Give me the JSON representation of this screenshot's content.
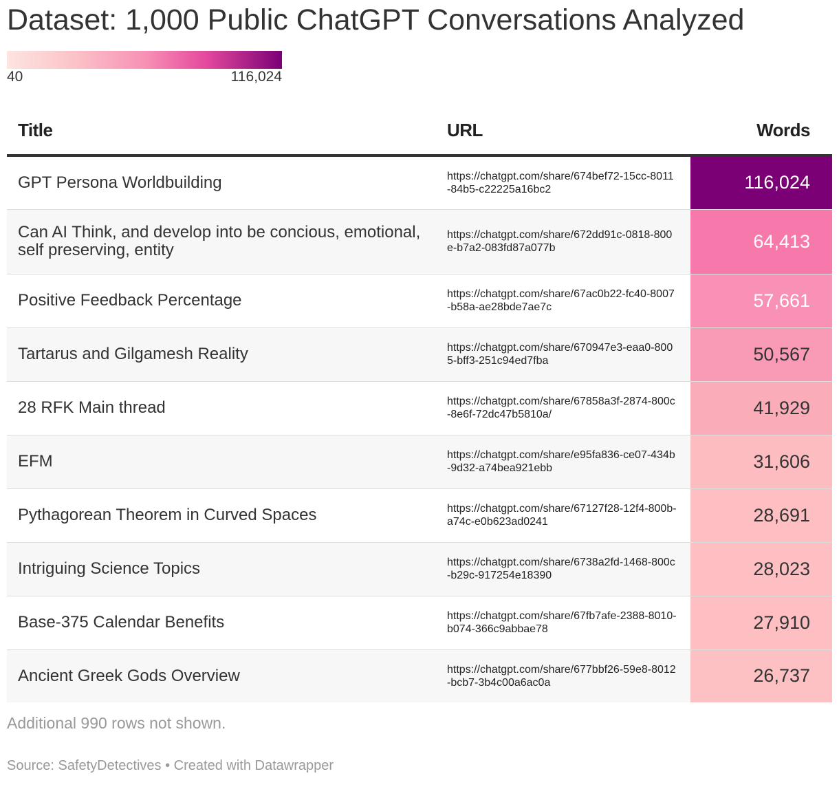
{
  "title": "Dataset: 1,000 Public ChatGPT Conversations Analyzed",
  "legend": {
    "min_label": "40",
    "max_label": "116,024",
    "min": 40,
    "max": 116024,
    "colors": [
      "#fde5e1",
      "#fbc2c7",
      "#f891b5",
      "#e54a9e",
      "#7b0076"
    ]
  },
  "chart_data": {
    "type": "table",
    "columns": [
      "Title",
      "URL",
      "Words"
    ],
    "rows": [
      {
        "title": "GPT Persona Worldbuilding",
        "url": "https://chatgpt.com/share/674bef72-15cc-8011-84b5-c22225a16bc2",
        "words": 116024,
        "words_label": "116,024"
      },
      {
        "title": "Can AI Think, and develop into be concious, emotional, self preserving, entity",
        "url": "https://chatgpt.com/share/672dd91c-0818-800e-b7a2-083fd87a077b",
        "words": 64413,
        "words_label": "64,413"
      },
      {
        "title": "Positive Feedback Percentage",
        "url": "https://chatgpt.com/share/67ac0b22-fc40-8007-b58a-ae28bde7ae7c",
        "words": 57661,
        "words_label": "57,661"
      },
      {
        "title": "Tartarus and Gilgamesh Reality",
        "url": "https://chatgpt.com/share/670947e3-eaa0-8005-bff3-251c94ed7fba",
        "words": 50567,
        "words_label": "50,567"
      },
      {
        "title": "28 RFK Main thread",
        "url": "https://chatgpt.com/share/67858a3f-2874-800c-8e6f-72dc47b5810a/",
        "words": 41929,
        "words_label": "41,929"
      },
      {
        "title": "EFM",
        "url": "https://chatgpt.com/share/e95fa836-ce07-434b-9d32-a74bea921ebb",
        "words": 31606,
        "words_label": "31,606"
      },
      {
        "title": "Pythagorean Theorem in Curved Spaces",
        "url": "https://chatgpt.com/share/67127f28-12f4-800b-a74c-e0b623ad0241",
        "words": 28691,
        "words_label": "28,691"
      },
      {
        "title": "Intriguing Science Topics",
        "url": "https://chatgpt.com/share/6738a2fd-1468-800c-b29c-917254e18390",
        "words": 28023,
        "words_label": "28,023"
      },
      {
        "title": "Base-375 Calendar Benefits",
        "url": "https://chatgpt.com/share/67fb7afe-2388-8010-b074-366c9abbae78",
        "words": 27910,
        "words_label": "27,910"
      },
      {
        "title": "Ancient Greek Gods Overview",
        "url": "https://chatgpt.com/share/677bbf26-59e8-8012-bcb7-3b4c00a6ac0a",
        "words": 26737,
        "words_label": "26,737"
      }
    ]
  },
  "cell_colors": [
    "#7b0076",
    "#f778ab",
    "#f891b5",
    "#f99bb7",
    "#fbacb9",
    "#fdbcc0",
    "#fdbfc2",
    "#fdbfc2",
    "#fdbfc2",
    "#fdc0c3"
  ],
  "cell_text_colors": [
    "#ffffff",
    "#ffffff",
    "#ffffff",
    "#333333",
    "#333333",
    "#333333",
    "#333333",
    "#333333",
    "#333333",
    "#333333"
  ],
  "footer_note": "Additional 990 rows not shown.",
  "source": "Source: SafetyDetectives • Created with Datawrapper"
}
